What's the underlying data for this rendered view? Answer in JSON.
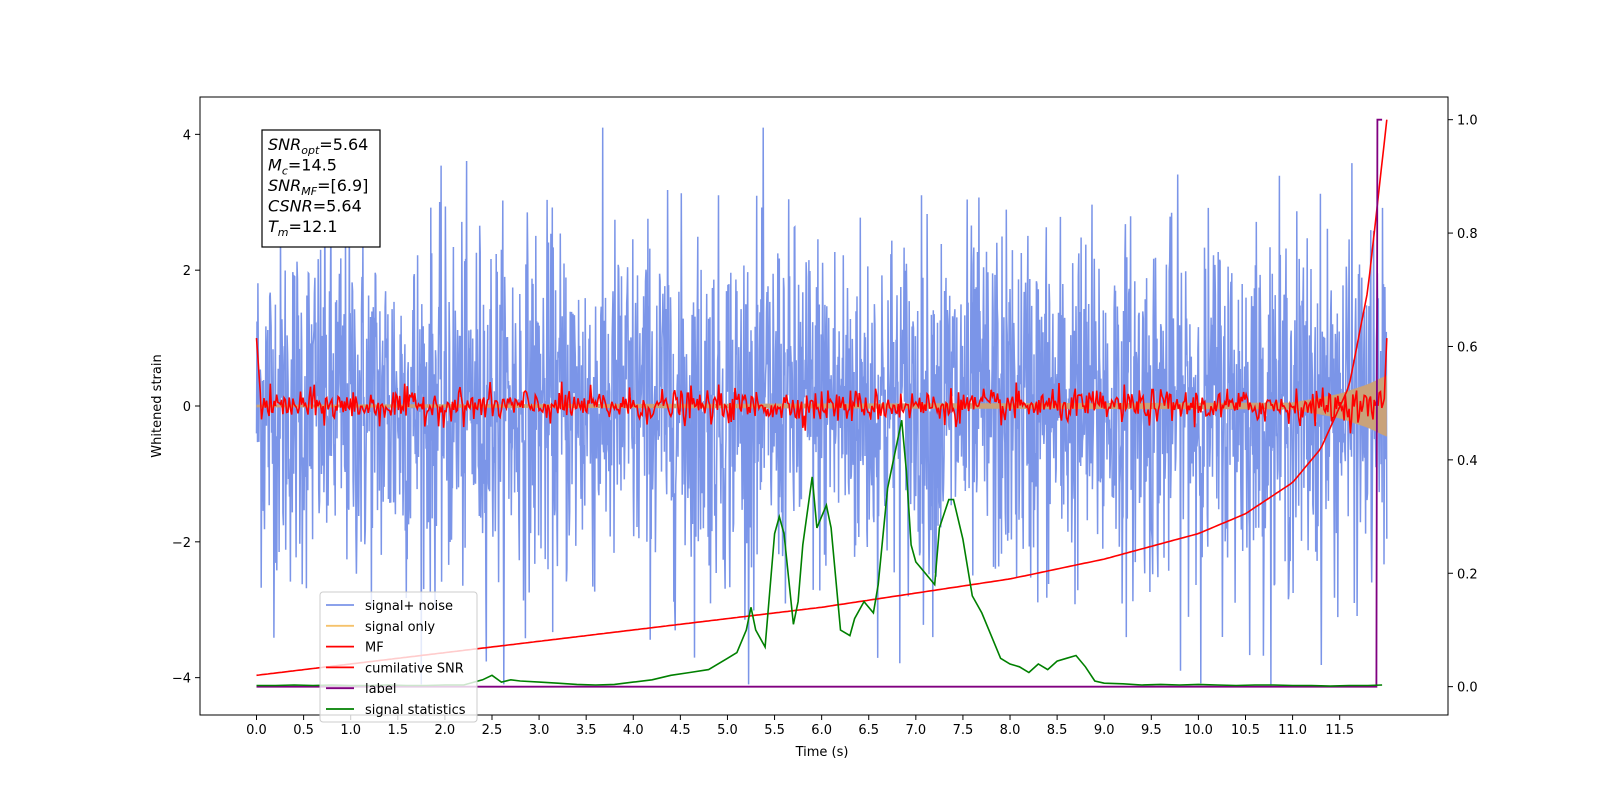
{
  "chart_data": {
    "type": "line",
    "xlabel": "Time (s)",
    "ylabel": "Whitened strain",
    "xlim": [
      -0.6,
      12.65
    ],
    "ylim": [
      -4.55,
      4.55
    ],
    "y2lim": [
      -0.05,
      1.04
    ],
    "xticks": [
      "0.0",
      "0.5",
      "1.0",
      "1.5",
      "2.0",
      "2.5",
      "3.0",
      "3.5",
      "4.0",
      "4.5",
      "5.0",
      "5.5",
      "6.0",
      "6.5",
      "7.0",
      "7.5",
      "8.0",
      "8.5",
      "9.0",
      "9.5",
      "10.0",
      "10.5",
      "11.0",
      "11.5"
    ],
    "yticks": [
      "4",
      "2",
      "0",
      "−2",
      "−4"
    ],
    "y2ticks": [
      "1.0",
      "0.8",
      "0.6",
      "0.4",
      "0.2",
      "0.0"
    ],
    "grid": false,
    "legend_position": "lower-left",
    "annotation": [
      {
        "sym": "SNR",
        "sub": "opt",
        "rest": "=5.64"
      },
      {
        "sym": "M",
        "sub": "c",
        "rest": "=14.5"
      },
      {
        "sym": "SNR",
        "sub": "MF",
        "rest": "=[6.9]"
      },
      {
        "sym": "CSNR",
        "sub": "",
        "rest": "=5.64"
      },
      {
        "sym": "T",
        "sub": "m",
        "rest": "=12.1"
      }
    ],
    "series": [
      {
        "name": "signal+ noise",
        "color": "#7b95e8",
        "axis": "left",
        "description_values": {
          "x_range": [
            0.0,
            12.0
          ],
          "amplitude_approx": 4.1,
          "mean": 0.0
        }
      },
      {
        "name": "signal only",
        "color": "#f5c26b",
        "axis": "left",
        "x": [
          0.0,
          11.0,
          11.5,
          11.8,
          11.95,
          12.0
        ],
        "envelope": [
          0.02,
          0.05,
          0.18,
          0.32,
          0.42,
          0.45
        ]
      },
      {
        "name": "MF",
        "color": "#ff0000",
        "axis": "left",
        "x": [
          0.0,
          0.02,
          0.05,
          12.0
        ],
        "values": [
          1.0,
          0.0,
          0.0,
          1.0
        ],
        "noise_amplitude": 0.22
      },
      {
        "name": "cumilative SNR",
        "color": "#ff0000",
        "axis": "right",
        "x": [
          0.0,
          1.0,
          2.0,
          3.0,
          4.0,
          5.0,
          6.0,
          7.0,
          8.0,
          9.0,
          10.0,
          10.5,
          11.0,
          11.3,
          11.6,
          11.8,
          11.9,
          12.0
        ],
        "values": [
          0.02,
          0.04,
          0.06,
          0.08,
          0.1,
          0.12,
          0.14,
          0.165,
          0.19,
          0.225,
          0.27,
          0.305,
          0.36,
          0.42,
          0.53,
          0.7,
          0.85,
          1.0
        ]
      },
      {
        "name": "label",
        "color": "#800080",
        "axis": "right",
        "x": [
          0.0,
          11.89,
          11.9,
          11.95
        ],
        "values": [
          0.0,
          0.0,
          1.0,
          1.0
        ]
      },
      {
        "name": "signal statistics",
        "color": "#008000",
        "axis": "right",
        "x": [
          0.0,
          0.2,
          0.4,
          0.6,
          0.8,
          1.0,
          1.2,
          1.4,
          1.6,
          1.8,
          2.0,
          2.2,
          2.4,
          2.5,
          2.6,
          2.7,
          2.8,
          3.0,
          3.2,
          3.4,
          3.6,
          3.8,
          4.0,
          4.2,
          4.4,
          4.6,
          4.8,
          5.0,
          5.1,
          5.2,
          5.25,
          5.3,
          5.4,
          5.5,
          5.55,
          5.6,
          5.7,
          5.75,
          5.8,
          5.9,
          5.95,
          6.0,
          6.05,
          6.1,
          6.2,
          6.3,
          6.35,
          6.45,
          6.55,
          6.6,
          6.7,
          6.8,
          6.85,
          6.9,
          6.95,
          7.0,
          7.1,
          7.2,
          7.25,
          7.35,
          7.4,
          7.5,
          7.6,
          7.7,
          7.8,
          7.9,
          8.0,
          8.1,
          8.2,
          8.3,
          8.4,
          8.5,
          8.6,
          8.7,
          8.8,
          8.9,
          9.0,
          9.2,
          9.4,
          9.6,
          9.8,
          10.0,
          10.2,
          10.4,
          10.6,
          10.8,
          11.0,
          11.2,
          11.4,
          11.6,
          11.8,
          11.95
        ],
        "values": [
          0.002,
          0.002,
          0.003,
          0.002,
          0.003,
          0.002,
          0.002,
          0.003,
          0.002,
          0.002,
          0.003,
          0.003,
          0.012,
          0.02,
          0.008,
          0.012,
          0.01,
          0.008,
          0.006,
          0.004,
          0.003,
          0.004,
          0.008,
          0.012,
          0.02,
          0.025,
          0.03,
          0.05,
          0.06,
          0.1,
          0.14,
          0.1,
          0.07,
          0.27,
          0.3,
          0.27,
          0.11,
          0.15,
          0.25,
          0.37,
          0.28,
          0.3,
          0.32,
          0.28,
          0.1,
          0.09,
          0.12,
          0.15,
          0.13,
          0.18,
          0.35,
          0.43,
          0.47,
          0.38,
          0.25,
          0.22,
          0.2,
          0.18,
          0.28,
          0.33,
          0.33,
          0.26,
          0.16,
          0.13,
          0.09,
          0.05,
          0.04,
          0.035,
          0.025,
          0.04,
          0.03,
          0.045,
          0.05,
          0.055,
          0.035,
          0.01,
          0.006,
          0.005,
          0.003,
          0.004,
          0.003,
          0.004,
          0.003,
          0.002,
          0.003,
          0.003,
          0.002,
          0.002,
          0.001,
          0.002,
          0.002,
          0.003
        ]
      }
    ]
  }
}
